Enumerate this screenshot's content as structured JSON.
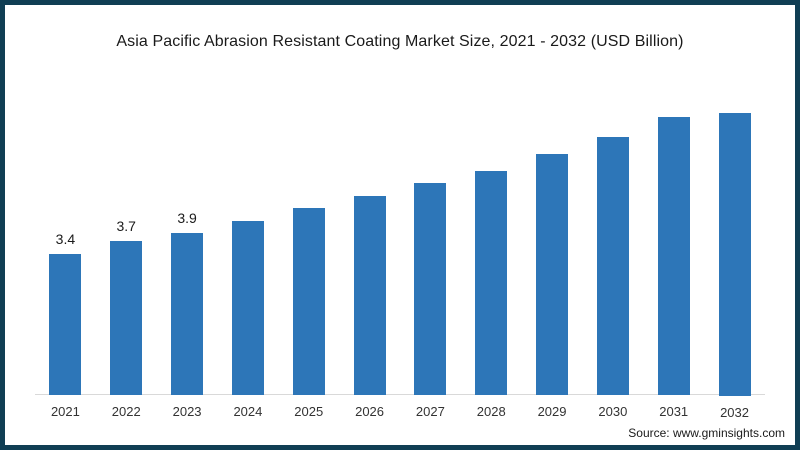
{
  "chart_data": {
    "type": "bar",
    "title": "Asia Pacific Abrasion Resistant Coating Market Size, 2021 - 2032 (USD Billion)",
    "categories": [
      "2021",
      "2022",
      "2023",
      "2024",
      "2025",
      "2026",
      "2027",
      "2028",
      "2029",
      "2030",
      "2031",
      "2032"
    ],
    "values": [
      3.4,
      3.7,
      3.9,
      4.2,
      4.5,
      4.8,
      5.1,
      5.4,
      5.8,
      6.2,
      6.7,
      7.2
    ],
    "value_labels": [
      "3.4",
      "3.7",
      "3.9",
      "",
      "",
      "",
      "",
      "",
      "",
      "",
      "",
      ""
    ],
    "xlabel": "",
    "ylabel": "",
    "ylim": [
      0,
      7.7
    ],
    "grid": false,
    "legend": "none",
    "bar_color": "#2d76b8"
  },
  "source": "Source: www.gminsights.com",
  "colors": {
    "frame_border": "#103e54",
    "bar": "#2d76b8",
    "title_text": "#1a1a1a",
    "axis_line": "#d9d9d9",
    "tick_text": "#333333"
  }
}
